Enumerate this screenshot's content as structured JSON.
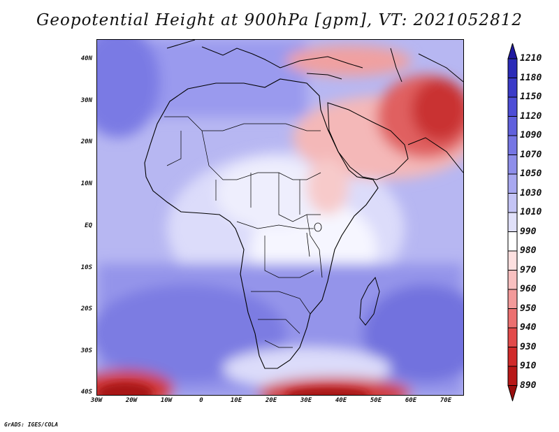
{
  "title": "Geopotential Height at 900hPa [gpm], VT: 2021052812",
  "footer": "GrADS: IGES/COLA",
  "map": {
    "lat_ticks": [
      "40N",
      "30N",
      "20N",
      "10N",
      "EQ",
      "10S",
      "20S",
      "30S",
      "40S"
    ],
    "lon_ticks": [
      "30W",
      "20W",
      "10W",
      "0",
      "10E",
      "20E",
      "30E",
      "40E",
      "50E",
      "60E",
      "70E"
    ]
  },
  "colorbar": {
    "levels": [
      "1210",
      "1180",
      "1150",
      "1120",
      "1090",
      "1070",
      "1050",
      "1030",
      "1010",
      "990",
      "980",
      "970",
      "960",
      "950",
      "940",
      "930",
      "910",
      "890"
    ],
    "colors": [
      "#201aa0",
      "#2b2bb8",
      "#3a3ac8",
      "#4d4dd6",
      "#6060dd",
      "#7676e4",
      "#8e8eea",
      "#a8a8f0",
      "#c4c4f5",
      "#e0e0f9",
      "#ffffff",
      "#fde0e0",
      "#f9c0c0",
      "#f39a9a",
      "#ec7070",
      "#e24a4a",
      "#d02a2a",
      "#b81818",
      "#9a0e0e"
    ]
  }
}
